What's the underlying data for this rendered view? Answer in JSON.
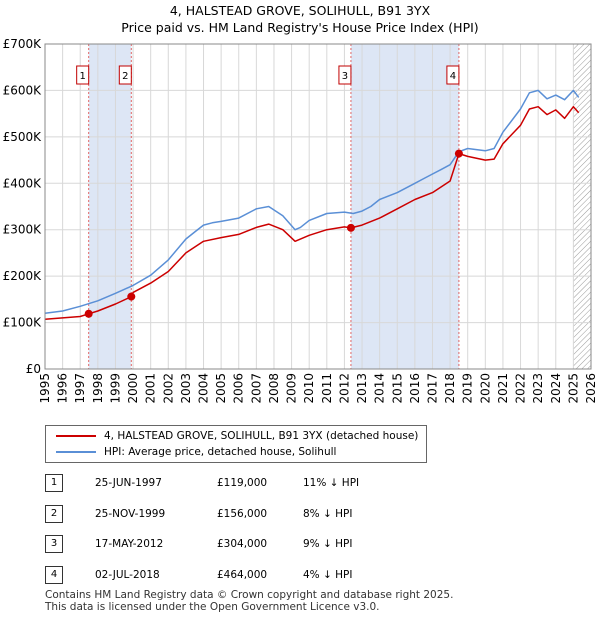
{
  "title_line1": "4, HALSTEAD GROVE, SOLIHULL, B91 3YX",
  "title_line2": "Price paid vs. HM Land Registry's House Price Index (HPI)",
  "legend": {
    "property_label": "4, HALSTEAD GROVE, SOLIHULL, B91 3YX (detached house)",
    "hpi_label": "HPI: Average price, detached house, Solihull"
  },
  "colors": {
    "property": "#cc0000",
    "hpi": "#5a8fd6",
    "shade": "#dde6f5",
    "grid": "#d8d8d8"
  },
  "transactions": [
    {
      "num": "1",
      "date": "25-JUN-1997",
      "price": "£119,000",
      "diff": "11% ↓ HPI"
    },
    {
      "num": "2",
      "date": "25-NOV-1999",
      "price": "£156,000",
      "diff": "8% ↓ HPI"
    },
    {
      "num": "3",
      "date": "17-MAY-2012",
      "price": "£304,000",
      "diff": "9% ↓ HPI"
    },
    {
      "num": "4",
      "date": "02-JUL-2018",
      "price": "£464,000",
      "diff": "4% ↓ HPI"
    }
  ],
  "footer": {
    "line1": "Contains HM Land Registry data © Crown copyright and database right 2025.",
    "line2": "This data is licensed under the Open Government Licence v3.0."
  },
  "chart_data": {
    "type": "line",
    "title": "4, HALSTEAD GROVE, SOLIHULL, B91 3YX — Price paid vs. HM Land Registry's House Price Index (HPI)",
    "xlim": [
      1995,
      2026
    ],
    "ylim": [
      0,
      700000
    ],
    "x_ticks": [
      1995,
      1996,
      1997,
      1998,
      1999,
      2000,
      2001,
      2002,
      2003,
      2004,
      2005,
      2006,
      2007,
      2008,
      2009,
      2010,
      2011,
      2012,
      2013,
      2014,
      2015,
      2016,
      2017,
      2018,
      2019,
      2020,
      2021,
      2022,
      2023,
      2024,
      2025,
      2026
    ],
    "y_ticks": [
      {
        "value": 0,
        "label": "£0"
      },
      {
        "value": 100000,
        "label": "£100K"
      },
      {
        "value": 200000,
        "label": "£200K"
      },
      {
        "value": 300000,
        "label": "£300K"
      },
      {
        "value": 400000,
        "label": "£400K"
      },
      {
        "value": 500000,
        "label": "£500K"
      },
      {
        "value": 600000,
        "label": "£600K"
      },
      {
        "value": 700000,
        "label": "£700K"
      }
    ],
    "grid": true,
    "shaded_ranges": [
      [
        1997.48,
        1999.9
      ],
      [
        2012.37,
        2018.5
      ]
    ],
    "hatched_from": 2025.0,
    "sales": [
      {
        "label": "1",
        "x": 1997.48,
        "y": 119000
      },
      {
        "label": "2",
        "x": 1999.9,
        "y": 156000
      },
      {
        "label": "3",
        "x": 2012.37,
        "y": 304000
      },
      {
        "label": "4",
        "x": 2018.5,
        "y": 464000
      }
    ],
    "series": [
      {
        "name": "HPI: Average price, detached house, Solihull",
        "x": [
          1995,
          1996,
          1997,
          1998,
          1999,
          2000,
          2001,
          2002,
          2003,
          2003.5,
          2004,
          2004.5,
          2005,
          2006,
          2007,
          2007.7,
          2008.5,
          2009.2,
          2009.5,
          2010,
          2011,
          2012,
          2012.5,
          2013,
          2013.5,
          2014,
          2015,
          2016,
          2016.5,
          2017,
          2017.5,
          2018,
          2018.5,
          2019,
          2020,
          2020.5,
          2021,
          2022,
          2022.5,
          2023,
          2023.5,
          2024,
          2024.5,
          2025,
          2025.3
        ],
        "y": [
          120000,
          125000,
          135000,
          147000,
          163000,
          180000,
          202000,
          235000,
          280000,
          295000,
          310000,
          315000,
          318000,
          325000,
          345000,
          350000,
          330000,
          300000,
          305000,
          320000,
          335000,
          338000,
          335000,
          340000,
          350000,
          365000,
          380000,
          400000,
          410000,
          420000,
          430000,
          440000,
          468000,
          475000,
          470000,
          475000,
          510000,
          560000,
          595000,
          600000,
          582000,
          590000,
          580000,
          600000,
          585000
        ]
      },
      {
        "name": "4, HALSTEAD GROVE, SOLIHULL, B91 3YX (detached house)",
        "x": [
          1995,
          1996,
          1997,
          1997.48,
          1998,
          1999,
          1999.9,
          2000,
          2001,
          2002,
          2003,
          2004,
          2005,
          2006,
          2007,
          2007.7,
          2008.5,
          2009.2,
          2010,
          2011,
          2012,
          2012.37,
          2013,
          2014,
          2015,
          2016,
          2017,
          2018,
          2018.5,
          2019,
          2020,
          2020.5,
          2021,
          2022,
          2022.5,
          2023,
          2023.5,
          2024,
          2024.5,
          2025,
          2025.3
        ],
        "y": [
          107000,
          110000,
          113000,
          119000,
          125000,
          140000,
          156000,
          165000,
          185000,
          210000,
          250000,
          275000,
          283000,
          290000,
          305000,
          312000,
          300000,
          275000,
          288000,
          300000,
          306000,
          304000,
          310000,
          325000,
          345000,
          365000,
          380000,
          405000,
          464000,
          458000,
          450000,
          452000,
          485000,
          525000,
          560000,
          565000,
          548000,
          558000,
          540000,
          565000,
          552000
        ]
      }
    ]
  }
}
